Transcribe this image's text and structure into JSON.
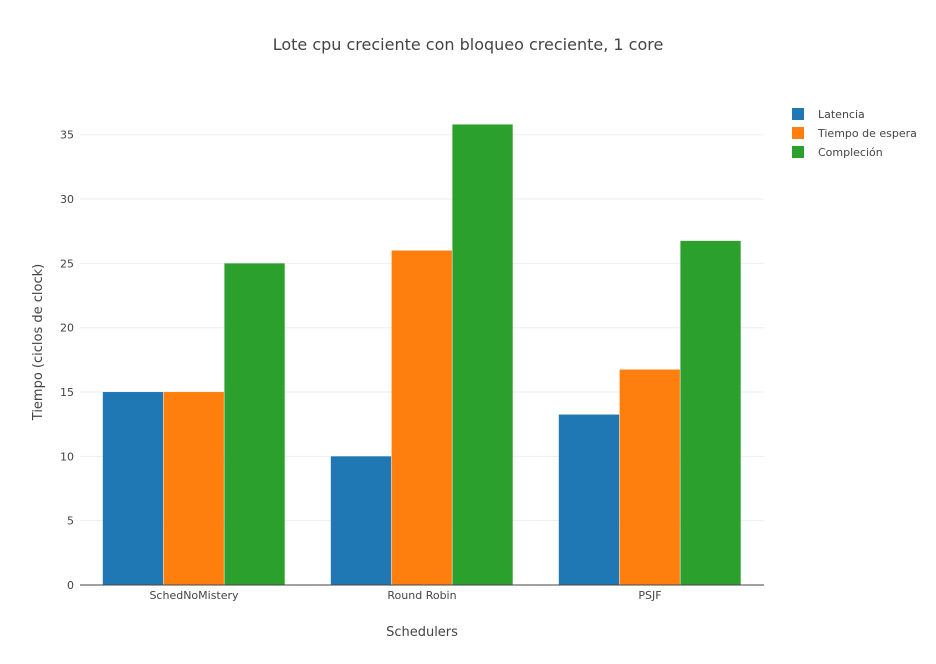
{
  "chart_data": {
    "type": "bar",
    "title": "Lote cpu creciente con bloqueo creciente, 1 core",
    "xlabel": "Schedulers",
    "ylabel": "Tiempo (ciclos de clock)",
    "categories": [
      "SchedNoMistery",
      "Round Robin",
      "PSJF"
    ],
    "series": [
      {
        "name": "Latencia",
        "values": [
          15,
          10,
          13.25
        ],
        "color": "#1f77b4"
      },
      {
        "name": "Tiempo de espera",
        "values": [
          15,
          26,
          16.75
        ],
        "color": "#ff7f0e"
      },
      {
        "name": "Compleción",
        "values": [
          25,
          35.8,
          26.75
        ],
        "color": "#2ca02c"
      }
    ],
    "ylim": [
      0,
      37.7
    ],
    "yticks": [
      0,
      5,
      10,
      15,
      20,
      25,
      30,
      35
    ],
    "grid": true,
    "legend_position": "top-right"
  }
}
